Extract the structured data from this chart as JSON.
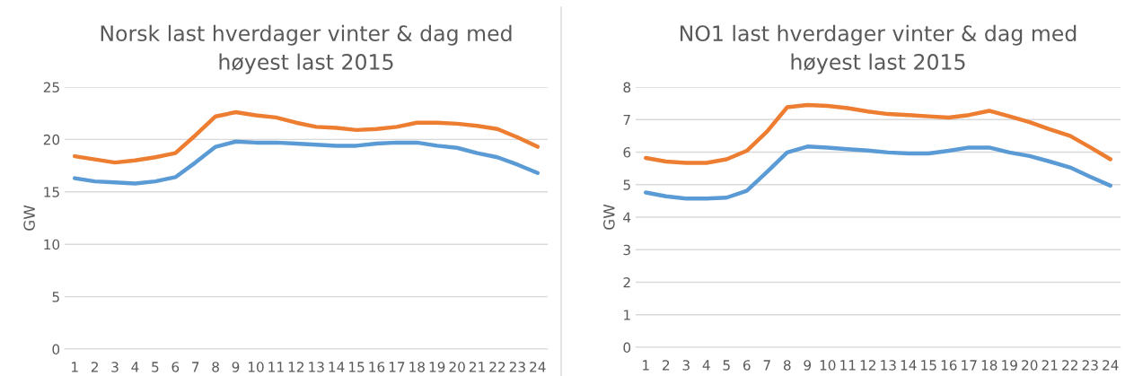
{
  "chart_data": [
    {
      "type": "line",
      "title": "Norsk last hverdager vinter & dag med\nhøyest last 2015",
      "ylabel": "GW",
      "categories": [
        "1",
        "2",
        "3",
        "4",
        "5",
        "6",
        "7",
        "8",
        "9",
        "10",
        "11",
        "12",
        "13",
        "14",
        "15",
        "16",
        "17",
        "18",
        "19",
        "20",
        "21",
        "22",
        "23",
        "24"
      ],
      "series": [
        {
          "color": "#ed7d31",
          "values": [
            18.4,
            18.1,
            17.8,
            18.0,
            18.3,
            18.7,
            20.4,
            22.2,
            22.6,
            22.3,
            22.1,
            21.6,
            21.2,
            21.1,
            20.9,
            21.0,
            21.2,
            21.6,
            21.6,
            21.5,
            21.3,
            21.0,
            20.2,
            19.3
          ]
        },
        {
          "color": "#5b9bd5",
          "values": [
            16.3,
            16.0,
            15.9,
            15.8,
            16.0,
            16.4,
            17.8,
            19.3,
            19.8,
            19.7,
            19.7,
            19.6,
            19.5,
            19.4,
            19.4,
            19.6,
            19.7,
            19.7,
            19.4,
            19.2,
            18.7,
            18.3,
            17.6,
            16.8
          ]
        }
      ],
      "ylim": [
        0,
        25
      ],
      "yticks": [
        0,
        5,
        10,
        15,
        20,
        25
      ],
      "grid": "y",
      "marker": "none",
      "line_style": "solid"
    },
    {
      "type": "line",
      "title": "NO1 last hverdager vinter & dag med\nhøyest last 2015",
      "ylabel": "GW",
      "categories": [
        "1",
        "2",
        "3",
        "4",
        "5",
        "6",
        "7",
        "8",
        "9",
        "10",
        "11",
        "12",
        "13",
        "14",
        "15",
        "16",
        "17",
        "18",
        "19",
        "20",
        "21",
        "22",
        "23",
        "24"
      ],
      "series": [
        {
          "color": "#ed7d31",
          "values": [
            5.82,
            5.71,
            5.67,
            5.67,
            5.78,
            6.04,
            6.63,
            7.38,
            7.45,
            7.42,
            7.35,
            7.25,
            7.17,
            7.14,
            7.1,
            7.06,
            7.14,
            7.27,
            7.1,
            6.92,
            6.7,
            6.5,
            6.15,
            5.78
          ]
        },
        {
          "color": "#5b9bd5",
          "values": [
            4.76,
            4.64,
            4.57,
            4.57,
            4.6,
            4.81,
            5.39,
            5.99,
            6.17,
            6.14,
            6.09,
            6.05,
            5.99,
            5.96,
            5.96,
            6.04,
            6.14,
            6.14,
            5.99,
            5.88,
            5.71,
            5.53,
            5.24,
            4.97
          ]
        }
      ],
      "ylim": [
        0,
        8
      ],
      "yticks": [
        0,
        1,
        2,
        3,
        4,
        5,
        6,
        7,
        8
      ],
      "grid": "y",
      "marker": "none",
      "line_style": "solid"
    }
  ]
}
